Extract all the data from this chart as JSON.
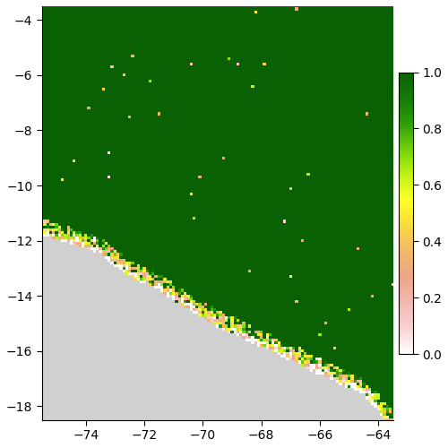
{
  "xlim": [
    -75.5,
    -63.5
  ],
  "ylim": [
    -18.5,
    -3.5
  ],
  "xticks": [
    -74,
    -72,
    -70,
    -68,
    -66,
    -64
  ],
  "yticks": [
    -18,
    -16,
    -14,
    -12,
    -10,
    -8,
    -6,
    -4
  ],
  "colorbar_ticks": [
    0.0,
    0.2,
    0.4,
    0.6,
    0.8,
    1.0
  ],
  "x_range": [
    -75.5,
    -63.5
  ],
  "y_range": [
    -18.5,
    -3.5
  ],
  "nx": 121,
  "ny": 151,
  "gray_color": "#d0d0d0",
  "background_color": "#ffffff",
  "boundary_points_x": [
    -75.5,
    -74.5,
    -73.5,
    -72.5,
    -71.5,
    -70.5,
    -69.5,
    -68.5,
    -67.5,
    -66.5,
    -65.5,
    -64.5,
    -63.5
  ],
  "boundary_points_y": [
    -11.5,
    -11.8,
    -12.2,
    -13.0,
    -13.5,
    -14.2,
    -14.8,
    -15.3,
    -15.8,
    -16.3,
    -16.8,
    -17.3,
    -18.5
  ],
  "noise_seed": 7,
  "figsize": [
    5.0,
    5.0
  ],
  "dpi": 100
}
